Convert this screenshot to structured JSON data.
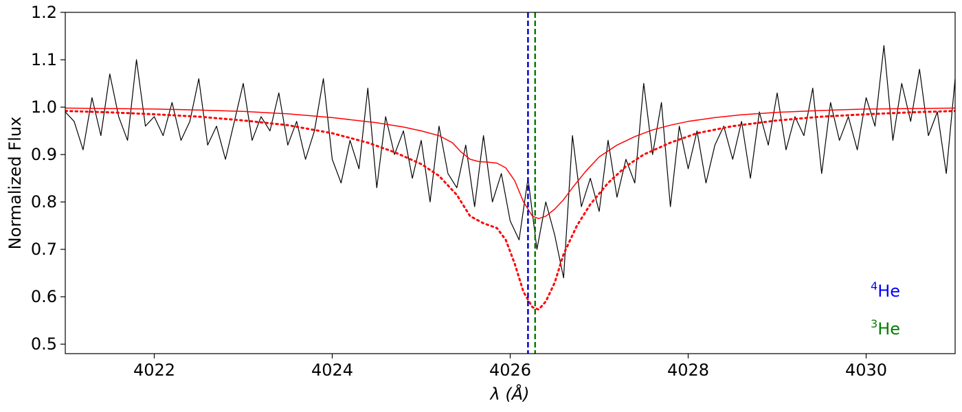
{
  "chart_data": {
    "type": "line",
    "xlabel": "λ (Å)",
    "ylabel": "Normalized Flux",
    "xlim": [
      4021.0,
      4031.0
    ],
    "ylim": [
      0.48,
      1.2
    ],
    "x_ticks": [
      4022,
      4024,
      4026,
      4028,
      4030
    ],
    "y_ticks": [
      0.5,
      0.6,
      0.7,
      0.8,
      0.9,
      1.0,
      1.1,
      1.2
    ],
    "grid": false,
    "series": [
      {
        "style": "solid-black-thin",
        "color": "#000000",
        "x": [
          4021.0,
          4021.1,
          4021.2,
          4021.3,
          4021.4,
          4021.5,
          4021.6,
          4021.7,
          4021.8,
          4021.9,
          4022.0,
          4022.1,
          4022.2,
          4022.3,
          4022.4,
          4022.5,
          4022.6,
          4022.7,
          4022.8,
          4022.9,
          4023.0,
          4023.1,
          4023.2,
          4023.3,
          4023.4,
          4023.5,
          4023.6,
          4023.7,
          4023.8,
          4023.9,
          4024.0,
          4024.1,
          4024.2,
          4024.3,
          4024.4,
          4024.5,
          4024.6,
          4024.7,
          4024.8,
          4024.9,
          4025.0,
          4025.1,
          4025.2,
          4025.3,
          4025.4,
          4025.5,
          4025.6,
          4025.7,
          4025.8,
          4025.9,
          4026.0,
          4026.1,
          4026.2,
          4026.3,
          4026.4,
          4026.5,
          4026.6,
          4026.7,
          4026.8,
          4026.9,
          4027.0,
          4027.1,
          4027.2,
          4027.3,
          4027.4,
          4027.5,
          4027.6,
          4027.7,
          4027.8,
          4027.9,
          4028.0,
          4028.1,
          4028.2,
          4028.3,
          4028.4,
          4028.5,
          4028.6,
          4028.7,
          4028.8,
          4028.9,
          4029.0,
          4029.1,
          4029.2,
          4029.3,
          4029.4,
          4029.5,
          4029.6,
          4029.7,
          4029.8,
          4029.9,
          4030.0,
          4030.1,
          4030.2,
          4030.3,
          4030.4,
          4030.5,
          4030.6,
          4030.7,
          4030.8,
          4030.9,
          4031.0
        ],
        "y": [
          0.99,
          0.97,
          0.91,
          1.02,
          0.94,
          1.07,
          0.98,
          0.93,
          1.1,
          0.96,
          0.98,
          0.94,
          1.01,
          0.93,
          0.97,
          1.06,
          0.92,
          0.96,
          0.89,
          0.97,
          1.05,
          0.93,
          0.98,
          0.95,
          1.03,
          0.92,
          0.97,
          0.89,
          0.95,
          1.06,
          0.89,
          0.84,
          0.93,
          0.87,
          1.04,
          0.83,
          0.98,
          0.9,
          0.95,
          0.85,
          0.93,
          0.8,
          0.96,
          0.86,
          0.83,
          0.92,
          0.79,
          0.94,
          0.8,
          0.86,
          0.76,
          0.72,
          0.85,
          0.7,
          0.8,
          0.73,
          0.64,
          0.94,
          0.79,
          0.85,
          0.78,
          0.93,
          0.81,
          0.89,
          0.84,
          1.05,
          0.9,
          1.01,
          0.79,
          0.96,
          0.87,
          0.95,
          0.84,
          0.92,
          0.96,
          0.89,
          0.97,
          0.85,
          0.99,
          0.92,
          1.03,
          0.91,
          0.98,
          0.94,
          1.04,
          0.86,
          1.01,
          0.93,
          0.98,
          0.91,
          1.02,
          0.96,
          1.13,
          0.93,
          1.05,
          0.97,
          1.08,
          0.94,
          0.99,
          0.86,
          1.06
        ]
      },
      {
        "style": "solid-red",
        "color": "#ff0000",
        "x": [
          4021.0,
          4021.5,
          4022.0,
          4022.5,
          4023.0,
          4023.5,
          4024.0,
          4024.5,
          4024.8,
          4025.0,
          4025.2,
          4025.35,
          4025.45,
          4025.55,
          4025.65,
          4025.75,
          4025.85,
          4025.95,
          4026.05,
          4026.15,
          4026.25,
          4026.32,
          4026.4,
          4026.5,
          4026.6,
          4026.7,
          4026.85,
          4027.0,
          4027.2,
          4027.4,
          4027.6,
          4027.8,
          4028.0,
          4028.3,
          4028.6,
          4029.0,
          4029.5,
          4030.0,
          4030.5,
          4031.0
        ],
        "y": [
          0.998,
          0.997,
          0.996,
          0.994,
          0.991,
          0.986,
          0.978,
          0.967,
          0.958,
          0.95,
          0.94,
          0.925,
          0.905,
          0.89,
          0.885,
          0.884,
          0.882,
          0.872,
          0.845,
          0.8,
          0.77,
          0.765,
          0.77,
          0.785,
          0.805,
          0.83,
          0.865,
          0.895,
          0.92,
          0.938,
          0.952,
          0.962,
          0.97,
          0.978,
          0.984,
          0.989,
          0.993,
          0.996,
          0.997,
          0.998
        ]
      },
      {
        "style": "dotted-red",
        "color": "#ff0000",
        "x": [
          4021.0,
          4021.5,
          4022.0,
          4022.5,
          4023.0,
          4023.5,
          4024.0,
          4024.4,
          4024.7,
          4025.0,
          4025.2,
          4025.4,
          4025.55,
          4025.7,
          4025.85,
          4025.95,
          4026.05,
          4026.15,
          4026.25,
          4026.32,
          4026.4,
          4026.5,
          4026.6,
          4026.75,
          4026.9,
          4027.1,
          4027.3,
          4027.5,
          4027.8,
          4028.1,
          4028.5,
          4029.0,
          4029.5,
          4030.0,
          4030.5,
          4031.0
        ],
        "y": [
          0.992,
          0.989,
          0.985,
          0.98,
          0.972,
          0.962,
          0.945,
          0.925,
          0.905,
          0.88,
          0.855,
          0.815,
          0.77,
          0.755,
          0.745,
          0.72,
          0.67,
          0.61,
          0.578,
          0.573,
          0.59,
          0.63,
          0.69,
          0.75,
          0.795,
          0.84,
          0.875,
          0.9,
          0.925,
          0.945,
          0.96,
          0.972,
          0.98,
          0.985,
          0.989,
          0.992
        ]
      }
    ],
    "vlines": [
      {
        "x": 4026.2,
        "color": "#0000cc",
        "style": "dashed"
      },
      {
        "x": 4026.28,
        "color": "#007f00",
        "style": "dashed"
      }
    ],
    "annotations": [
      {
        "sup": "4",
        "text": "He",
        "color": "#0000ff"
      },
      {
        "sup": "3",
        "text": "He",
        "color": "#008000"
      }
    ]
  }
}
